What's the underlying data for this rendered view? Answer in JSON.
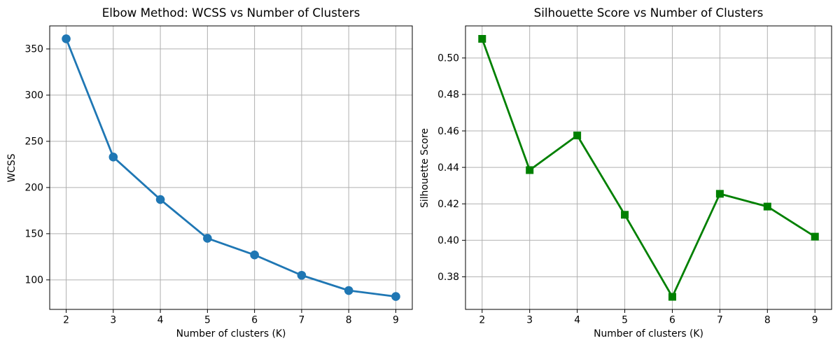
{
  "figure": {
    "background": "#ffffff",
    "text_color": "#000000",
    "grid_color": "#b0b0b0",
    "spine_color": "#000000",
    "tick_color": "#000000"
  },
  "chart_data": [
    {
      "type": "line",
      "title": "Elbow Method: WCSS vs Number of Clusters",
      "xlabel": "Number of clusters (K)",
      "ylabel": "WCSS",
      "x": [
        2,
        3,
        4,
        5,
        6,
        7,
        8,
        9
      ],
      "series": [
        {
          "name": "WCSS",
          "values": [
            361,
            233,
            187,
            145,
            127,
            105,
            88.5,
            82
          ],
          "color": "#1f77b4",
          "marker": "circle"
        }
      ],
      "xticks": [
        2,
        3,
        4,
        5,
        6,
        7,
        8,
        9
      ],
      "yticks": [
        100,
        150,
        200,
        250,
        300,
        350
      ],
      "ytick_decimals": 0,
      "xlim": [
        1.65,
        9.35
      ],
      "ylim": [
        68.05,
        374.95
      ],
      "grid": true,
      "legend": "none"
    },
    {
      "type": "line",
      "title": "Silhouette Score vs Number of Clusters",
      "xlabel": "Number of clusters (K)",
      "ylabel": "Silhouette Score",
      "x": [
        2,
        3,
        4,
        5,
        6,
        7,
        8,
        9
      ],
      "series": [
        {
          "name": "Silhouette Score",
          "values": [
            0.5105,
            0.4385,
            0.4575,
            0.414,
            0.369,
            0.4255,
            0.4185,
            0.402
          ],
          "color": "#008000",
          "marker": "square"
        }
      ],
      "xticks": [
        2,
        3,
        4,
        5,
        6,
        7,
        8,
        9
      ],
      "yticks": [
        0.38,
        0.4,
        0.42,
        0.44,
        0.46,
        0.48,
        0.5
      ],
      "ytick_decimals": 2,
      "xlim": [
        1.65,
        9.35
      ],
      "ylim": [
        0.3621,
        0.5176
      ],
      "grid": true,
      "legend": "none"
    }
  ]
}
